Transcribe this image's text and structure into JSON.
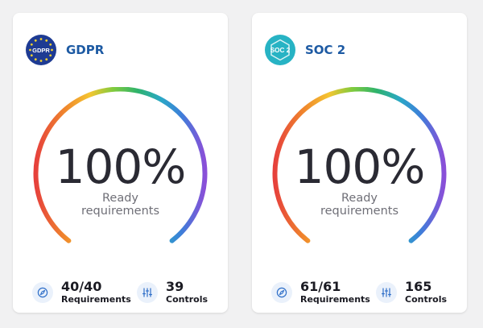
{
  "cards": [
    {
      "framework": "GDPR",
      "logo_icon": "eu-flag-gdpr-icon",
      "logo_text": "GDPR",
      "readiness_percent": "100%",
      "readiness_fraction": 1.0,
      "ready_label_line1": "Ready",
      "ready_label_line2": "requirements",
      "requirements_value": "40/40",
      "requirements_label": "Requirements",
      "controls_value": "39",
      "controls_label": "Controls"
    },
    {
      "framework": "SOC 2",
      "logo_icon": "soc2-hexagon-icon",
      "logo_text": "SOC 2",
      "readiness_percent": "100%",
      "readiness_fraction": 1.0,
      "ready_label_line1": "Ready",
      "ready_label_line2": "requirements",
      "requirements_value": "61/61",
      "requirements_label": "Requirements",
      "controls_value": "165",
      "controls_label": "Controls"
    }
  ],
  "colors": {
    "gauge_gradient": [
      "#e6413c",
      "#f08a2c",
      "#f4c531",
      "#7fcb3e",
      "#2fb36b",
      "#2aa8c6",
      "#3d7fd9",
      "#8a4fd8"
    ],
    "framework_title": "#1d5aa3",
    "gdpr_blue": "#1e3b93",
    "soc2_teal": "#27b3c4"
  }
}
